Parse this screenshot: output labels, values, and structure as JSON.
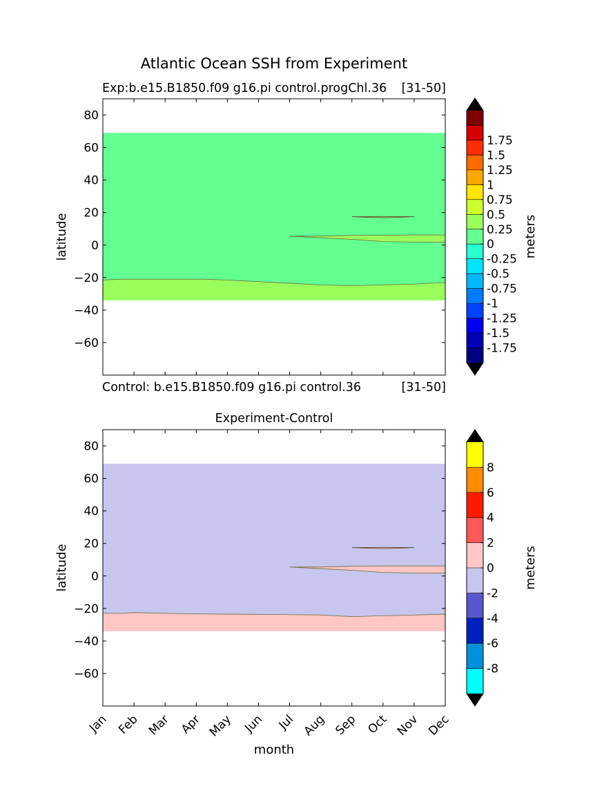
{
  "figure_title": "Atlantic Ocean SSH from Experiment",
  "chart_data": [
    {
      "type": "contour",
      "title_left": "Exp:b.e15.B1850.f09 g16.pi control.progChl.36",
      "title_right": "[31-50]",
      "footer_left": "Control: b.e15.B1850.f09 g16.pi control.36",
      "footer_right": "[31-50]",
      "xlabel": "",
      "ylabel": "latitude",
      "ylim": [
        -80,
        90
      ],
      "yticks": [
        -60,
        -40,
        -20,
        0,
        20,
        40,
        60,
        80
      ],
      "xlim": [
        0,
        11
      ],
      "months": [
        "Jan",
        "Feb",
        "Mar",
        "Apr",
        "May",
        "Jun",
        "Jul",
        "Aug",
        "Sep",
        "Oct",
        "Nov",
        "Dec"
      ],
      "show_month_labels": false,
      "background_color": "#ffffff",
      "data_extent": {
        "lat_min": -34,
        "lat_max": 69
      },
      "main_fill_color": "#63ff91",
      "southern_band": {
        "color": "#99ff5c",
        "upper_edge": {
          "x": [
            0,
            0.6,
            3.2,
            4.0,
            5.0,
            6.0,
            7.0,
            8.0,
            9.0,
            10.0,
            11.0
          ],
          "lat": [
            -21.5,
            -21,
            -21,
            -21.5,
            -22.5,
            -23.5,
            -24.5,
            -25,
            -24.5,
            -24,
            -23
          ]
        }
      },
      "equatorial_tongue": {
        "color": "#99ff5c",
        "upper": {
          "x": [
            6.0,
            7.0,
            8.0,
            9.0,
            10.0,
            11.0
          ],
          "lat": [
            5.5,
            5.5,
            6,
            6,
            6.2,
            6.2
          ]
        },
        "lower": {
          "x": [
            11.0,
            10.0,
            9.0,
            8.0,
            7.0,
            6.0
          ],
          "lat": [
            1.8,
            1.8,
            2.2,
            3.5,
            4.5,
            5.5
          ]
        }
      },
      "northern_lens": {
        "color": "#99ff5c",
        "x": [
          8.0,
          10.0
        ],
        "lat_center": 17.5,
        "half_thickness": 0.6
      },
      "colorbar": {
        "label": "meters",
        "colors": [
          "#000080",
          "#0000b3",
          "#0000f0",
          "#0040ff",
          "#007cff",
          "#00b8ff",
          "#00e5ff",
          "#26ffd1",
          "#63ff91",
          "#99ff5c",
          "#ccff2e",
          "#ffe600",
          "#ffa600",
          "#ff6a00",
          "#ff2e00",
          "#d60000",
          "#800000"
        ],
        "tick_labels": [
          "-1.75",
          "-1.5",
          "-1.25",
          "-1",
          "-0.75",
          "-0.5",
          "-0.25",
          "0",
          "0.25",
          "0.5",
          "0.75",
          "1",
          "1.25",
          "1.5",
          "1.75"
        ],
        "tick_label_boundaries": [
          1,
          2,
          3,
          4,
          5,
          6,
          7,
          8,
          9,
          10,
          11,
          12,
          13,
          14,
          15
        ],
        "extend": "both",
        "extend_color": "#000000"
      }
    },
    {
      "type": "contour",
      "title_center": "Experiment-Control",
      "xlabel": "month",
      "ylabel": "latitude",
      "ylim": [
        -80,
        90
      ],
      "yticks": [
        -60,
        -40,
        -20,
        0,
        20,
        40,
        60,
        80
      ],
      "xlim": [
        0,
        11
      ],
      "months": [
        "Jan",
        "Feb",
        "Mar",
        "Apr",
        "May",
        "Jun",
        "Jul",
        "Aug",
        "Sep",
        "Oct",
        "Nov",
        "Dec"
      ],
      "show_month_labels": true,
      "background_color": "#ffffff",
      "data_extent": {
        "lat_min": -34,
        "lat_max": 69
      },
      "main_fill_color": "#c6c6ee",
      "southern_band": {
        "color": "#ffc6c6",
        "upper_edge": {
          "x": [
            0,
            0.6,
            1.0,
            2.0,
            3.0,
            4.0,
            5.0,
            6.0,
            7.0,
            8.0,
            9.0,
            10.0,
            11.0
          ],
          "lat": [
            -23,
            -23,
            -22.5,
            -23,
            -23.3,
            -23.5,
            -23.6,
            -23.8,
            -24,
            -25,
            -24.5,
            -24,
            -23.5
          ]
        }
      },
      "equatorial_tongue": {
        "color": "#ffc6c6",
        "upper": {
          "x": [
            6.0,
            7.0,
            8.0,
            9.0,
            10.0,
            11.0
          ],
          "lat": [
            5.5,
            5.5,
            6,
            6.2,
            6.2,
            6.2
          ]
        },
        "lower": {
          "x": [
            11.0,
            10.0,
            9.0,
            8.0,
            7.0,
            6.0
          ],
          "lat": [
            1.8,
            1.8,
            2.2,
            3.5,
            4.5,
            5.5
          ]
        }
      },
      "northern_lens": {
        "color": "#ffc6c6",
        "x": [
          8.0,
          10.0
        ],
        "lat_center": 17.5,
        "half_thickness": 0.6
      },
      "colorbar": {
        "label": "meters",
        "colors": [
          "#00ffff",
          "#0090dc",
          "#0020c0",
          "#5858cc",
          "#c6c6ee",
          "#ffc6c6",
          "#ff5858",
          "#ff1a00",
          "#ff8c00",
          "#ffff00"
        ],
        "tick_labels": [
          "-8",
          "-6",
          "-4",
          "-2",
          "0",
          "2",
          "4",
          "6",
          "8"
        ],
        "tick_label_boundaries": [
          1,
          2,
          3,
          4,
          5,
          6,
          7,
          8,
          9
        ],
        "extend": "both",
        "extend_color": "#000000"
      }
    }
  ]
}
